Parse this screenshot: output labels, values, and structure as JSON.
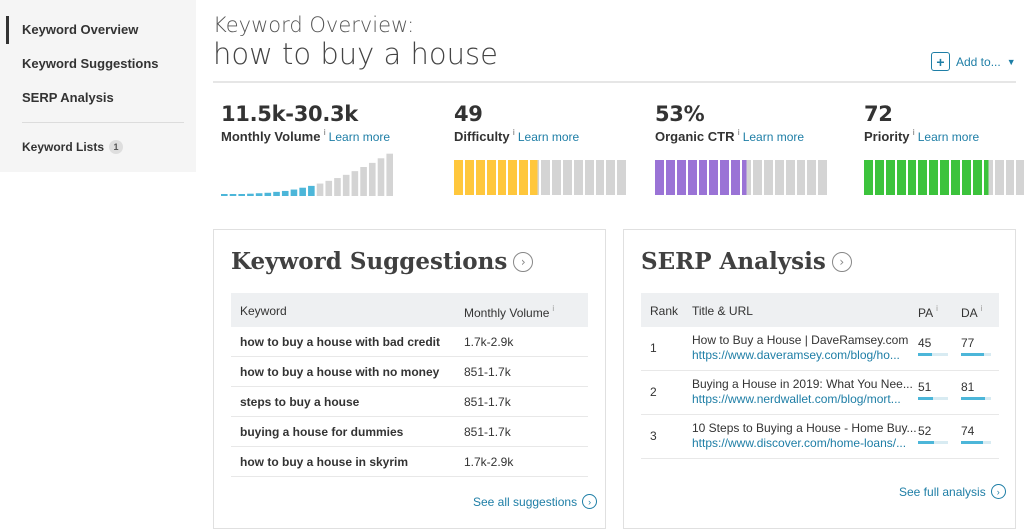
{
  "sidebar": {
    "items": [
      {
        "label": "Keyword Overview",
        "active": true
      },
      {
        "label": "Keyword Suggestions"
      },
      {
        "label": "SERP Analysis"
      }
    ],
    "lists_label": "Keyword Lists",
    "lists_count": "1"
  },
  "header": {
    "label": "Keyword Overview:",
    "keyword": "how to buy a house",
    "add_to": "Add to...",
    "plus_icon": "+"
  },
  "metrics": {
    "info_glyph": "i",
    "learn_more": "Learn more",
    "volume": {
      "value": "11.5k-30.3k",
      "label": "Monthly Volume",
      "bar_levels": [
        0.03,
        0.03,
        0.04,
        0.05,
        0.06,
        0.07,
        0.09,
        0.11,
        0.14,
        0.18,
        0.22,
        0.27,
        0.33,
        0.39,
        0.46,
        0.54,
        0.63,
        0.72,
        0.82,
        0.92
      ],
      "filled_bars": 11,
      "filled_color": "#4cb6d9",
      "empty_color": "#d4d4d4"
    },
    "difficulty": {
      "value": "49",
      "label": "Difficulty",
      "score": 49,
      "color": "#ffc73c"
    },
    "ctr": {
      "value": "53%",
      "label": "Organic CTR",
      "score": 53,
      "color": "#9a73d6"
    },
    "priority": {
      "value": "72",
      "label": "Priority",
      "score": 72,
      "color": "#3cc33c"
    }
  },
  "keyword_suggestions": {
    "title": "Keyword Suggestions",
    "col_keyword": "Keyword",
    "col_volume": "Monthly Volume",
    "rows": [
      {
        "keyword": "how to buy a house with bad credit",
        "volume": "1.7k-2.9k"
      },
      {
        "keyword": "how to buy a house with no money",
        "volume": "851-1.7k"
      },
      {
        "keyword": "steps to buy a house",
        "volume": "851-1.7k"
      },
      {
        "keyword": "buying a house for dummies",
        "volume": "851-1.7k"
      },
      {
        "keyword": "how to buy a house in skyrim",
        "volume": "1.7k-2.9k"
      }
    ],
    "see_all": "See all suggestions"
  },
  "serp_analysis": {
    "title": "SERP Analysis",
    "col_rank": "Rank",
    "col_title": "Title & URL",
    "col_pa": "PA",
    "col_da": "DA",
    "rows": [
      {
        "rank": "1",
        "title": "How to Buy a House | DaveRamsey.com",
        "url": "https://www.daveramsey.com/blog/ho...",
        "pa": "45",
        "da": "77"
      },
      {
        "rank": "2",
        "title": "Buying a House in 2019: What You Nee...",
        "url": "https://www.nerdwallet.com/blog/mort...",
        "pa": "51",
        "da": "81"
      },
      {
        "rank": "3",
        "title": "10 Steps to Buying a House - Home Buy...",
        "url": "https://www.discover.com/home-loans/...",
        "pa": "52",
        "da": "74"
      }
    ],
    "see_full": "See full analysis"
  },
  "icons": {
    "circle_arrow": "›",
    "caret": "▼"
  }
}
